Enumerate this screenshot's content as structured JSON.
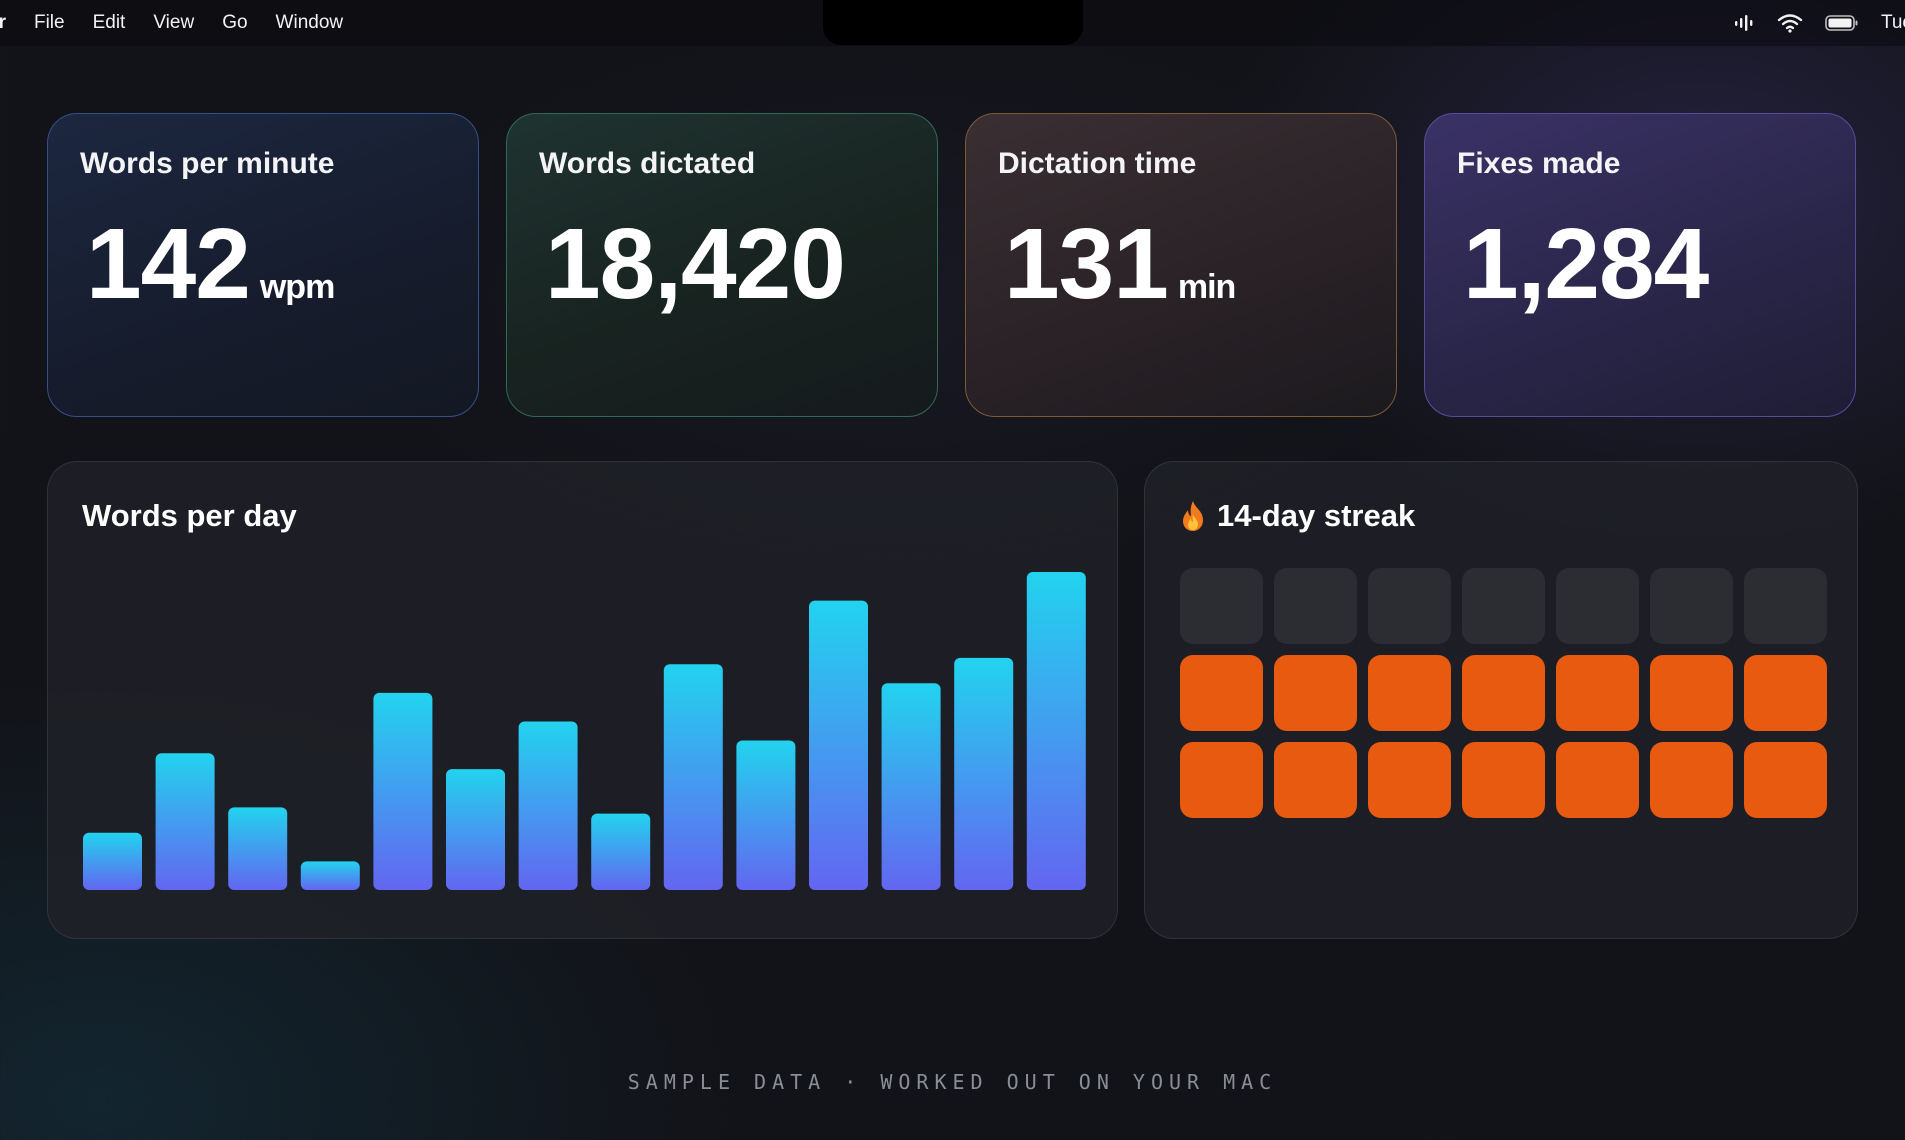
{
  "menubar": {
    "app_name": "er",
    "menus": [
      "File",
      "Edit",
      "View",
      "Go",
      "Window"
    ],
    "clock": "Tue",
    "icons": [
      "audio-waveform-icon",
      "wifi-icon",
      "battery-icon"
    ]
  },
  "stats": [
    {
      "label": "Words per minute",
      "value": "142",
      "unit": "wpm"
    },
    {
      "label": "Words dictated",
      "value": "18,420",
      "unit": ""
    },
    {
      "label": "Dictation time",
      "value": "131",
      "unit": "min"
    },
    {
      "label": "Fixes made",
      "value": "1,284",
      "unit": ""
    }
  ],
  "chart": {
    "title": "Words per day"
  },
  "chart_data": {
    "type": "bar",
    "title": "Words per day",
    "values": [
      18,
      43,
      26,
      9,
      62,
      38,
      53,
      24,
      71,
      47,
      91,
      65,
      73,
      100
    ],
    "colors": {
      "top": "#22d3ee",
      "bottom": "#6366f1"
    }
  },
  "streak": {
    "title": "14-day streak",
    "icon": "fire-icon",
    "cells": [
      0,
      0,
      0,
      0,
      0,
      0,
      0,
      1,
      1,
      1,
      1,
      1,
      1,
      1,
      1,
      1,
      1,
      1,
      1,
      1,
      1
    ],
    "filled_color": "#e85a10",
    "empty_color": "#2c2d33"
  },
  "footer": "SAMPLE DATA · WORKED OUT ON YOUR MAC"
}
